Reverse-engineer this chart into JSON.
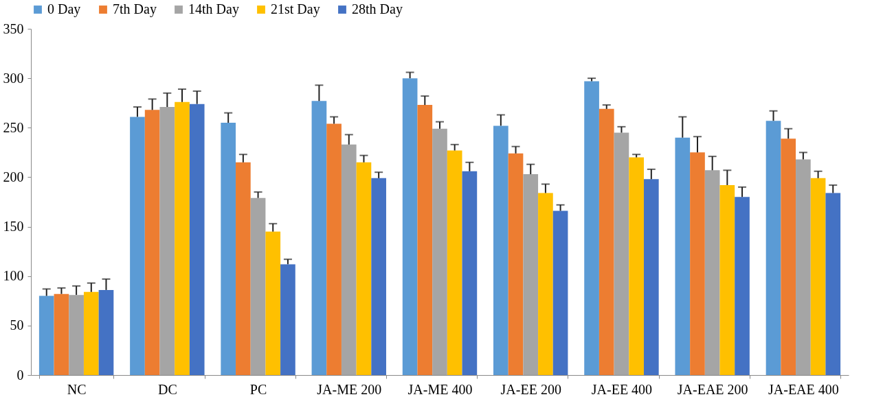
{
  "chart_data": {
    "type": "bar",
    "categories": [
      "NC",
      "DC",
      "PC",
      "JA-ME 200",
      "JA-ME 400",
      "JA-EE 200",
      "JA-EE 400",
      "JA-EAE 200",
      "JA-EAE 400"
    ],
    "series": [
      {
        "name": "0 Day",
        "color": "#5b9bd5",
        "values": [
          80,
          261,
          255,
          277,
          300,
          252,
          297,
          240,
          257
        ],
        "errors": [
          [
            80,
            87
          ],
          [
            261,
            271
          ],
          [
            255,
            265
          ],
          [
            277,
            293
          ],
          [
            300,
            306
          ],
          [
            252,
            263
          ],
          [
            297,
            300
          ],
          [
            240,
            261
          ],
          [
            257,
            267
          ]
        ]
      },
      {
        "name": "7th Day",
        "color": "#ed7d31",
        "values": [
          82,
          268,
          215,
          254,
          273,
          224,
          269,
          225,
          239
        ],
        "errors": [
          [
            82,
            88
          ],
          [
            268,
            279
          ],
          [
            215,
            223
          ],
          [
            254,
            261
          ],
          [
            273,
            282
          ],
          [
            224,
            231
          ],
          [
            269,
            273
          ],
          [
            225,
            241
          ],
          [
            239,
            249
          ]
        ]
      },
      {
        "name": "14th Day",
        "color": "#a5a5a5",
        "values": [
          81,
          271,
          179,
          233,
          249,
          203,
          245,
          207,
          218
        ],
        "errors": [
          [
            81,
            90
          ],
          [
            271,
            285
          ],
          [
            179,
            185
          ],
          [
            233,
            243
          ],
          [
            249,
            256
          ],
          [
            203,
            213
          ],
          [
            245,
            251
          ],
          [
            207,
            221
          ],
          [
            218,
            225
          ]
        ]
      },
      {
        "name": "21st Day",
        "color": "#ffc000",
        "values": [
          84,
          276,
          145,
          215,
          227,
          184,
          220,
          192,
          199
        ],
        "errors": [
          [
            84,
            93
          ],
          [
            276,
            289
          ],
          [
            145,
            153
          ],
          [
            215,
            222
          ],
          [
            227,
            233
          ],
          [
            184,
            193
          ],
          [
            220,
            223
          ],
          [
            192,
            207
          ],
          [
            199,
            206
          ]
        ]
      },
      {
        "name": "28th  Day",
        "color": "#4472c4",
        "values": [
          86,
          274,
          112,
          199,
          206,
          166,
          198,
          180,
          184
        ],
        "errors": [
          [
            86,
            97
          ],
          [
            274,
            287
          ],
          [
            112,
            117
          ],
          [
            199,
            205
          ],
          [
            206,
            215
          ],
          [
            166,
            172
          ],
          [
            198,
            208
          ],
          [
            180,
            190
          ],
          [
            184,
            192
          ]
        ]
      }
    ],
    "ylim": [
      0,
      350
    ],
    "yticks": [
      0,
      50,
      100,
      150,
      200,
      250,
      300,
      350
    ],
    "grid": false,
    "legend": "top"
  }
}
